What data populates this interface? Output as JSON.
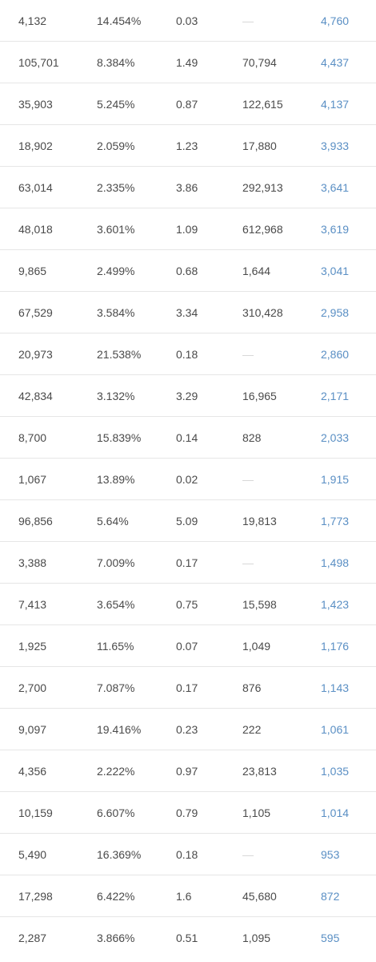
{
  "table": {
    "rows": [
      [
        "4,132",
        "14.454%",
        "0.03",
        "—",
        "4,760"
      ],
      [
        "105,701",
        "8.384%",
        "1.49",
        "70,794",
        "4,437"
      ],
      [
        "35,903",
        "5.245%",
        "0.87",
        "122,615",
        "4,137"
      ],
      [
        "18,902",
        "2.059%",
        "1.23",
        "17,880",
        "3,933"
      ],
      [
        "63,014",
        "2.335%",
        "3.86",
        "292,913",
        "3,641"
      ],
      [
        "48,018",
        "3.601%",
        "1.09",
        "612,968",
        "3,619"
      ],
      [
        "9,865",
        "2.499%",
        "0.68",
        "1,644",
        "3,041"
      ],
      [
        "67,529",
        "3.584%",
        "3.34",
        "310,428",
        "2,958"
      ],
      [
        "20,973",
        "21.538%",
        "0.18",
        "—",
        "2,860"
      ],
      [
        "42,834",
        "3.132%",
        "3.29",
        "16,965",
        "2,171"
      ],
      [
        "8,700",
        "15.839%",
        "0.14",
        "828",
        "2,033"
      ],
      [
        "1,067",
        "13.89%",
        "0.02",
        "—",
        "1,915"
      ],
      [
        "96,856",
        "5.64%",
        "5.09",
        "19,813",
        "1,773"
      ],
      [
        "3,388",
        "7.009%",
        "0.17",
        "—",
        "1,498"
      ],
      [
        "7,413",
        "3.654%",
        "0.75",
        "15,598",
        "1,423"
      ],
      [
        "1,925",
        "11.65%",
        "0.07",
        "1,049",
        "1,176"
      ],
      [
        "2,700",
        "7.087%",
        "0.17",
        "876",
        "1,143"
      ],
      [
        "9,097",
        "19.416%",
        "0.23",
        "222",
        "1,061"
      ],
      [
        "4,356",
        "2.222%",
        "0.97",
        "23,813",
        "1,035"
      ],
      [
        "10,159",
        "6.607%",
        "0.79",
        "1,105",
        "1,014"
      ],
      [
        "5,490",
        "16.369%",
        "0.18",
        "—",
        "953"
      ],
      [
        "17,298",
        "6.422%",
        "1.6",
        "45,680",
        "872"
      ],
      [
        "2,287",
        "3.866%",
        "0.51",
        "1,095",
        "595"
      ]
    ]
  },
  "colors": {
    "text": "#4a4a4a",
    "link": "#5a8fc4",
    "empty_dash": "#d6d6d6",
    "divider": "#e6e6e6"
  }
}
